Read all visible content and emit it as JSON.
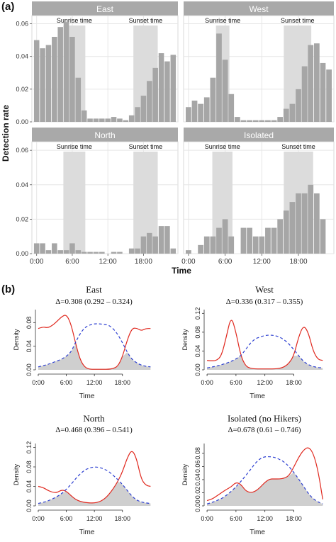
{
  "panel_a": {
    "label": "(a)",
    "ylabel": "Detection rate",
    "xlabel": "Time",
    "sunrise_label": "Sunrise time",
    "sunset_label": "Sunset time"
  },
  "panel_b": {
    "label": "(b)",
    "xlabel": "Time",
    "ylabel": "Density"
  },
  "colors": {
    "bar": "#a6a6a6",
    "shade": "#dcdcdc",
    "strip": "#a9a9a9",
    "strip_text": "#ffffff",
    "panel_bg": "#ffffff",
    "grid": "#e6e6e6",
    "red_line": "#e0281e",
    "blue_line": "#2c3fd1",
    "overlap_fill": "#cfcfcf"
  },
  "chart_data": [
    {
      "type": "bar",
      "facet": "East",
      "title": "East",
      "xticks": [
        "0:00",
        "6:00",
        "12:00",
        "18:00"
      ],
      "xtick_values": [
        0,
        6,
        12,
        18
      ],
      "xlim": [
        -0.8,
        23.8
      ],
      "ylim": [
        0,
        0.065
      ],
      "yticks": [
        0.0,
        0.02,
        0.04,
        0.06
      ],
      "ytick_labels": [
        "0.00",
        "0.02",
        "0.04",
        "0.06"
      ],
      "sunrise_band": [
        4.5,
        8.2
      ],
      "sunset_band": [
        16.3,
        20.4
      ],
      "hours": [
        0,
        1,
        2,
        3,
        4,
        5,
        6,
        7,
        8,
        9,
        10,
        11,
        12,
        13,
        14,
        15,
        16,
        17,
        18,
        19,
        20,
        21,
        22,
        23
      ],
      "values": [
        0.05,
        0.045,
        0.047,
        0.052,
        0.058,
        0.061,
        0.052,
        0.027,
        0.007,
        0.002,
        0.002,
        0.002,
        0.002,
        0.003,
        0.002,
        0.001,
        0.004,
        0.009,
        0.016,
        0.025,
        0.033,
        0.042,
        0.037,
        0.041
      ]
    },
    {
      "type": "bar",
      "facet": "West",
      "title": "West",
      "xticks": [
        "0:00",
        "6:00",
        "12:00",
        "18:00"
      ],
      "xtick_values": [
        0,
        6,
        12,
        18
      ],
      "xlim": [
        -0.8,
        23.8
      ],
      "ylim": [
        0,
        0.065
      ],
      "yticks": [
        0.0,
        0.02,
        0.04,
        0.06
      ],
      "ytick_labels": [
        "0.00",
        "0.02",
        "0.04",
        "0.06"
      ],
      "sunrise_band": [
        4.5,
        6.7
      ],
      "sunset_band": [
        15.6,
        20.1
      ],
      "hours": [
        0,
        1,
        2,
        3,
        4,
        5,
        6,
        7,
        8,
        9,
        10,
        11,
        12,
        13,
        14,
        15,
        16,
        17,
        18,
        19,
        20,
        21,
        22,
        23
      ],
      "values": [
        0.009,
        0.013,
        0.011,
        0.015,
        0.027,
        0.054,
        0.038,
        0.017,
        0.003,
        0.001,
        0.001,
        0.001,
        0.001,
        0.001,
        0.001,
        0.003,
        0.008,
        0.011,
        0.02,
        0.034,
        0.047,
        0.048,
        0.036,
        0.032
      ]
    },
    {
      "type": "bar",
      "facet": "North",
      "title": "North",
      "xticks": [
        "0:00",
        "6:00",
        "12:00",
        "18:00"
      ],
      "xtick_values": [
        0,
        6,
        12,
        18
      ],
      "xlim": [
        -0.8,
        23.8
      ],
      "ylim": [
        0,
        0.065
      ],
      "yticks": [
        0.0,
        0.02,
        0.04,
        0.06
      ],
      "ytick_labels": [
        "0.00",
        "0.02",
        "0.04",
        "0.06"
      ],
      "sunrise_band": [
        4.5,
        8.2
      ],
      "sunset_band": [
        16.3,
        20.4
      ],
      "hours": [
        0,
        1,
        2,
        3,
        4,
        5,
        6,
        7,
        8,
        9,
        10,
        11,
        12,
        13,
        14,
        15,
        16,
        17,
        18,
        19,
        20,
        21,
        22,
        23
      ],
      "values": [
        0.006,
        0.006,
        0.002,
        0.006,
        0.002,
        0.002,
        0.006,
        0.002,
        0.001,
        0.001,
        0.001,
        0.001,
        0.0,
        0.001,
        0.001,
        0.0,
        0.003,
        0.003,
        0.01,
        0.012,
        0.01,
        0.016,
        0.016,
        0.003
      ]
    },
    {
      "type": "bar",
      "facet": "Isolated",
      "title": "Isolated",
      "xticks": [
        "0:00",
        "6:00",
        "12:00",
        "18:00"
      ],
      "xtick_values": [
        0,
        6,
        12,
        18
      ],
      "xlim": [
        -0.8,
        23.8
      ],
      "ylim": [
        0,
        0.065
      ],
      "yticks": [
        0.0,
        0.02,
        0.04,
        0.06
      ],
      "ytick_labels": [
        "0.00",
        "0.02",
        "0.04",
        "0.06"
      ],
      "sunrise_band": [
        3.9,
        7.2
      ],
      "sunset_band": [
        15.6,
        20.4
      ],
      "hours": [
        0,
        1,
        2,
        3,
        4,
        5,
        6,
        7,
        8,
        9,
        10,
        11,
        12,
        13,
        14,
        15,
        16,
        17,
        18,
        19,
        20,
        21,
        22,
        23
      ],
      "values": [
        0.002,
        0.0,
        0.005,
        0.01,
        0.01,
        0.015,
        0.02,
        0.01,
        0.0,
        0.015,
        0.015,
        0.01,
        0.01,
        0.015,
        0.015,
        0.02,
        0.025,
        0.03,
        0.035,
        0.035,
        0.04,
        0.035,
        0.02,
        0.0
      ]
    },
    {
      "type": "line",
      "facet": "East",
      "title": "East",
      "subtitle": "Δ=0.308 (0.292 – 0.324)",
      "xlabel": "Time",
      "ylabel": "Density",
      "xticks": [
        "0:00",
        "6:00",
        "12:00",
        "18:00"
      ],
      "xtick_values": [
        0,
        6,
        12,
        18
      ],
      "xlim": [
        -0.6,
        24.4
      ],
      "ylim": [
        0,
        0.102
      ],
      "yticks": [
        0.0,
        0.04,
        0.08
      ],
      "ytick_labels": [
        "0.00",
        "0.04",
        "0.08"
      ],
      "x": [
        0,
        1,
        2,
        3,
        4,
        5,
        6,
        7,
        8,
        9,
        10,
        11,
        12,
        13,
        14,
        15,
        16,
        17,
        18,
        19,
        20,
        21,
        22,
        23,
        24
      ],
      "series": [
        {
          "color": "red",
          "dash": "solid",
          "values": [
            0.07,
            0.073,
            0.071,
            0.075,
            0.082,
            0.09,
            0.094,
            0.078,
            0.044,
            0.016,
            0.004,
            0.001,
            0.001,
            0.001,
            0.001,
            0.001,
            0.002,
            0.006,
            0.022,
            0.05,
            0.07,
            0.071,
            0.066,
            0.07,
            0.07
          ]
        },
        {
          "color": "blue",
          "dash": "dashed",
          "values": [
            0.005,
            0.007,
            0.009,
            0.012,
            0.015,
            0.018,
            0.023,
            0.03,
            0.047,
            0.062,
            0.072,
            0.076,
            0.078,
            0.078,
            0.077,
            0.076,
            0.07,
            0.06,
            0.046,
            0.03,
            0.018,
            0.012,
            0.008,
            0.006,
            0.005
          ]
        }
      ]
    },
    {
      "type": "line",
      "facet": "West",
      "title": "West",
      "subtitle": "Δ=0.336 (0.317 – 0.355)",
      "xlabel": "Time",
      "ylabel": "Density",
      "xticks": [
        "0:00",
        "6:00",
        "12:00",
        "18:00"
      ],
      "xtick_values": [
        0,
        6,
        12,
        18
      ],
      "xlim": [
        -0.6,
        24.4
      ],
      "ylim": [
        0,
        0.128
      ],
      "yticks": [
        0.0,
        0.04,
        0.08,
        0.12
      ],
      "ytick_labels": [
        "0.00",
        "0.04",
        "0.08",
        "0.12"
      ],
      "x": [
        0,
        1,
        2,
        3,
        4,
        5,
        6,
        7,
        8,
        9,
        10,
        11,
        12,
        13,
        14,
        15,
        16,
        17,
        18,
        19,
        20,
        21,
        22,
        23,
        24
      ],
      "series": [
        {
          "color": "red",
          "dash": "solid",
          "values": [
            0.02,
            0.019,
            0.02,
            0.03,
            0.07,
            0.115,
            0.08,
            0.03,
            0.008,
            0.003,
            0.002,
            0.002,
            0.002,
            0.002,
            0.002,
            0.003,
            0.006,
            0.014,
            0.03,
            0.07,
            0.095,
            0.08,
            0.04,
            0.022,
            0.02
          ]
        },
        {
          "color": "blue",
          "dash": "dashed",
          "values": [
            0.004,
            0.006,
            0.008,
            0.011,
            0.014,
            0.018,
            0.023,
            0.03,
            0.043,
            0.057,
            0.066,
            0.07,
            0.073,
            0.074,
            0.073,
            0.07,
            0.064,
            0.055,
            0.043,
            0.03,
            0.018,
            0.011,
            0.007,
            0.005,
            0.004
          ]
        }
      ]
    },
    {
      "type": "line",
      "facet": "North",
      "title": "North",
      "subtitle": "Δ=0.468 (0.396 – 0.541)",
      "xlabel": "Time",
      "ylabel": "Density",
      "xticks": [
        "0:00",
        "6:00",
        "12:00",
        "18:00"
      ],
      "xtick_values": [
        0,
        6,
        12,
        18
      ],
      "xlim": [
        -0.6,
        24.4
      ],
      "ylim": [
        0,
        0.128
      ],
      "yticks": [
        0.0,
        0.04,
        0.08,
        0.12
      ],
      "ytick_labels": [
        "0.00",
        "0.04",
        "0.08",
        "0.12"
      ],
      "x": [
        0,
        1,
        2,
        3,
        4,
        5,
        6,
        7,
        8,
        9,
        10,
        11,
        12,
        13,
        14,
        15,
        16,
        17,
        18,
        19,
        20,
        21,
        22,
        23,
        24
      ],
      "series": [
        {
          "color": "red",
          "dash": "solid",
          "values": [
            0.04,
            0.038,
            0.032,
            0.028,
            0.027,
            0.033,
            0.03,
            0.021,
            0.013,
            0.009,
            0.007,
            0.006,
            0.006,
            0.008,
            0.013,
            0.022,
            0.035,
            0.05,
            0.07,
            0.098,
            0.116,
            0.098,
            0.055,
            0.042,
            0.04
          ]
        },
        {
          "color": "blue",
          "dash": "dashed",
          "values": [
            0.005,
            0.007,
            0.01,
            0.014,
            0.019,
            0.025,
            0.034,
            0.044,
            0.056,
            0.066,
            0.074,
            0.078,
            0.08,
            0.079,
            0.076,
            0.071,
            0.063,
            0.054,
            0.044,
            0.032,
            0.02,
            0.012,
            0.008,
            0.006,
            0.005
          ]
        }
      ]
    },
    {
      "type": "line",
      "facet": "Isolated (no Hikers)",
      "title": "Isolated (no Hikers)",
      "subtitle": "Δ=0.678 (0.61 – 0.746)",
      "xlabel": "Time",
      "ylabel": "Density",
      "xticks": [
        "0:00",
        "6:00",
        "12:00",
        "18:00"
      ],
      "xtick_values": [
        0,
        6,
        12,
        18
      ],
      "xlim": [
        -0.6,
        24.4
      ],
      "ylim": [
        0,
        0.095
      ],
      "yticks": [
        0.0,
        0.02,
        0.04,
        0.06,
        0.08
      ],
      "ytick_labels": [
        "0.00",
        "0.02",
        "0.04",
        "0.06",
        "0.08"
      ],
      "x": [
        0,
        1,
        2,
        3,
        4,
        5,
        6,
        7,
        8,
        9,
        10,
        11,
        12,
        13,
        14,
        15,
        16,
        17,
        18,
        19,
        20,
        21,
        22,
        23,
        24
      ],
      "series": [
        {
          "color": "red",
          "dash": "solid",
          "values": [
            0.008,
            0.01,
            0.015,
            0.02,
            0.025,
            0.029,
            0.036,
            0.033,
            0.023,
            0.02,
            0.022,
            0.028,
            0.036,
            0.041,
            0.041,
            0.041,
            0.042,
            0.046,
            0.059,
            0.074,
            0.085,
            0.09,
            0.081,
            0.055,
            0.01
          ]
        },
        {
          "color": "blue",
          "dash": "dashed",
          "values": [
            0.003,
            0.005,
            0.008,
            0.011,
            0.016,
            0.022,
            0.029,
            0.037,
            0.046,
            0.055,
            0.065,
            0.072,
            0.075,
            0.075,
            0.074,
            0.071,
            0.067,
            0.06,
            0.051,
            0.041,
            0.03,
            0.019,
            0.011,
            0.006,
            0.003
          ]
        }
      ]
    }
  ]
}
